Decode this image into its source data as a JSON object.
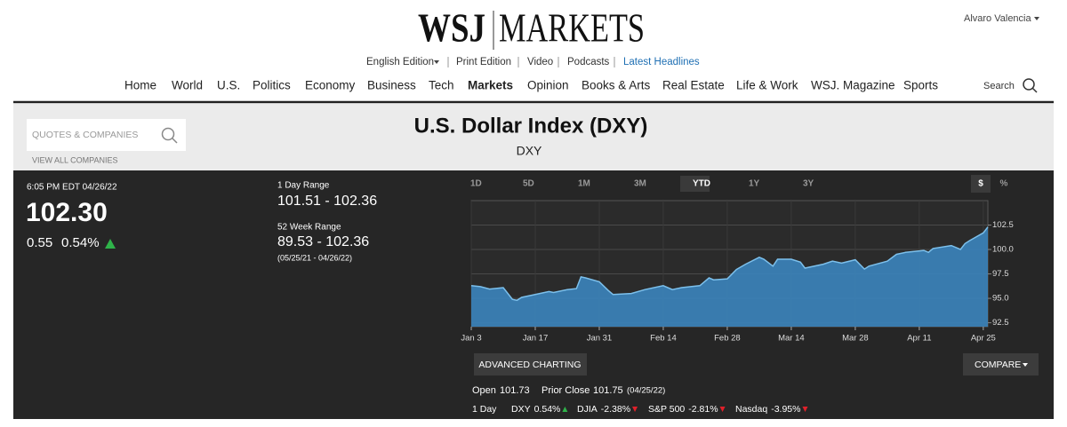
{
  "header": {
    "logo_left": "WSJ",
    "logo_right": "MARKETS",
    "user": "Alvaro Valencia"
  },
  "subnav": [
    "English Edition",
    "Print Edition",
    "Video",
    "Podcasts",
    "Latest Headlines"
  ],
  "nav": [
    "Home",
    "World",
    "U.S.",
    "Politics",
    "Economy",
    "Business",
    "Tech",
    "Markets",
    "Opinion",
    "Books & Arts",
    "Real Estate",
    "Life & Work",
    "WSJ. Magazine",
    "Sports"
  ],
  "nav_active": 7,
  "search": "Search",
  "quote_search": {
    "placeholder": "QUOTES & COMPANIES",
    "link": "VIEW ALL COMPANIES"
  },
  "instrument": {
    "title": "U.S. Dollar Index (DXY)",
    "symbol": "DXY"
  },
  "quote": {
    "timestamp": "6:05 PM EDT 04/26/22",
    "price": "102.30",
    "change": "0.55",
    "change_pct": "0.54%"
  },
  "ranges": {
    "day_label": "1 Day Range",
    "day": "101.51 - 102.36",
    "week52_label": "52 Week Range",
    "week52": "89.53 - 102.36",
    "week52_dates": "(05/25/21 - 04/26/22)"
  },
  "chart_tabs": [
    "1D",
    "5D",
    "1M",
    "3M",
    "YTD",
    "1Y",
    "3Y"
  ],
  "selected_tab": 4,
  "chart_units": [
    "$",
    "%"
  ],
  "selected_unit": 0,
  "chart_data": {
    "type": "area",
    "x": [
      "Jan 3",
      "Jan 5",
      "Jan 7",
      "Jan 10",
      "Jan 12",
      "Jan 13",
      "Jan 14",
      "Jan 18",
      "Jan 20",
      "Jan 21",
      "Jan 24",
      "Jan 26",
      "Jan 27",
      "Jan 28",
      "Jan 31",
      "Feb 2",
      "Feb 3",
      "Feb 7",
      "Feb 10",
      "Feb 14",
      "Feb 16",
      "Feb 18",
      "Feb 22",
      "Feb 24",
      "Feb 25",
      "Feb 28",
      "Mar 2",
      "Mar 4",
      "Mar 7",
      "Mar 8",
      "Mar 10",
      "Mar 11",
      "Mar 14",
      "Mar 16",
      "Mar 17",
      "Mar 21",
      "Mar 23",
      "Mar 25",
      "Mar 28",
      "Mar 30",
      "Mar 31",
      "Apr 4",
      "Apr 6",
      "Apr 8",
      "Apr 12",
      "Apr 13",
      "Apr 14",
      "Apr 18",
      "Apr 20",
      "Apr 21",
      "Apr 22",
      "Apr 25",
      "Apr 26"
    ],
    "values": [
      96.3,
      96.2,
      95.95,
      96.1,
      94.9,
      94.8,
      95.1,
      95.5,
      95.7,
      95.6,
      95.9,
      96.0,
      97.2,
      97.1,
      96.7,
      95.8,
      95.4,
      95.5,
      95.9,
      96.3,
      95.9,
      96.1,
      96.3,
      97.1,
      96.9,
      97.0,
      97.95,
      98.5,
      99.2,
      99.0,
      98.3,
      99.0,
      99.0,
      98.7,
      98.1,
      98.5,
      98.8,
      98.6,
      98.95,
      98.0,
      98.3,
      98.8,
      99.5,
      99.7,
      99.9,
      99.7,
      100.1,
      100.4,
      100.0,
      100.6,
      100.9,
      101.7,
      102.3
    ],
    "color": "#3b84bd",
    "xlim": [
      "Jan 3",
      "Apr 26"
    ],
    "xticks": [
      "Jan 3",
      "Jan 17",
      "Jan 31",
      "Feb 14",
      "Feb 28",
      "Mar 14",
      "Mar 28",
      "Apr 11",
      "Apr 25"
    ],
    "ylim": [
      92.1,
      105
    ],
    "yticks": [
      92.5,
      {
        "value": 95,
        "label": "95.0"
      },
      97.5,
      {
        "value": 100,
        "label": "100.0"
      },
      102.5
    ],
    "grid": true
  },
  "buttons": {
    "advanced": "ADVANCED CHARTING",
    "compare": "COMPARE"
  },
  "stats": {
    "open_label": "Open",
    "open": "101.73",
    "prior_close_label": "Prior Close",
    "prior_close": "101.75",
    "prior_close_date": "(04/25/22)"
  },
  "movers": {
    "label": "1 Day",
    "items": [
      {
        "name": "DXY",
        "change": "0.54%",
        "direction": "up"
      },
      {
        "name": "DJIA",
        "change": "-2.38%",
        "direction": "down"
      },
      {
        "name": "S&P 500",
        "change": "-2.81%",
        "direction": "down"
      },
      {
        "name": "Nasdaq",
        "change": "-3.95%",
        "direction": "down"
      }
    ]
  }
}
